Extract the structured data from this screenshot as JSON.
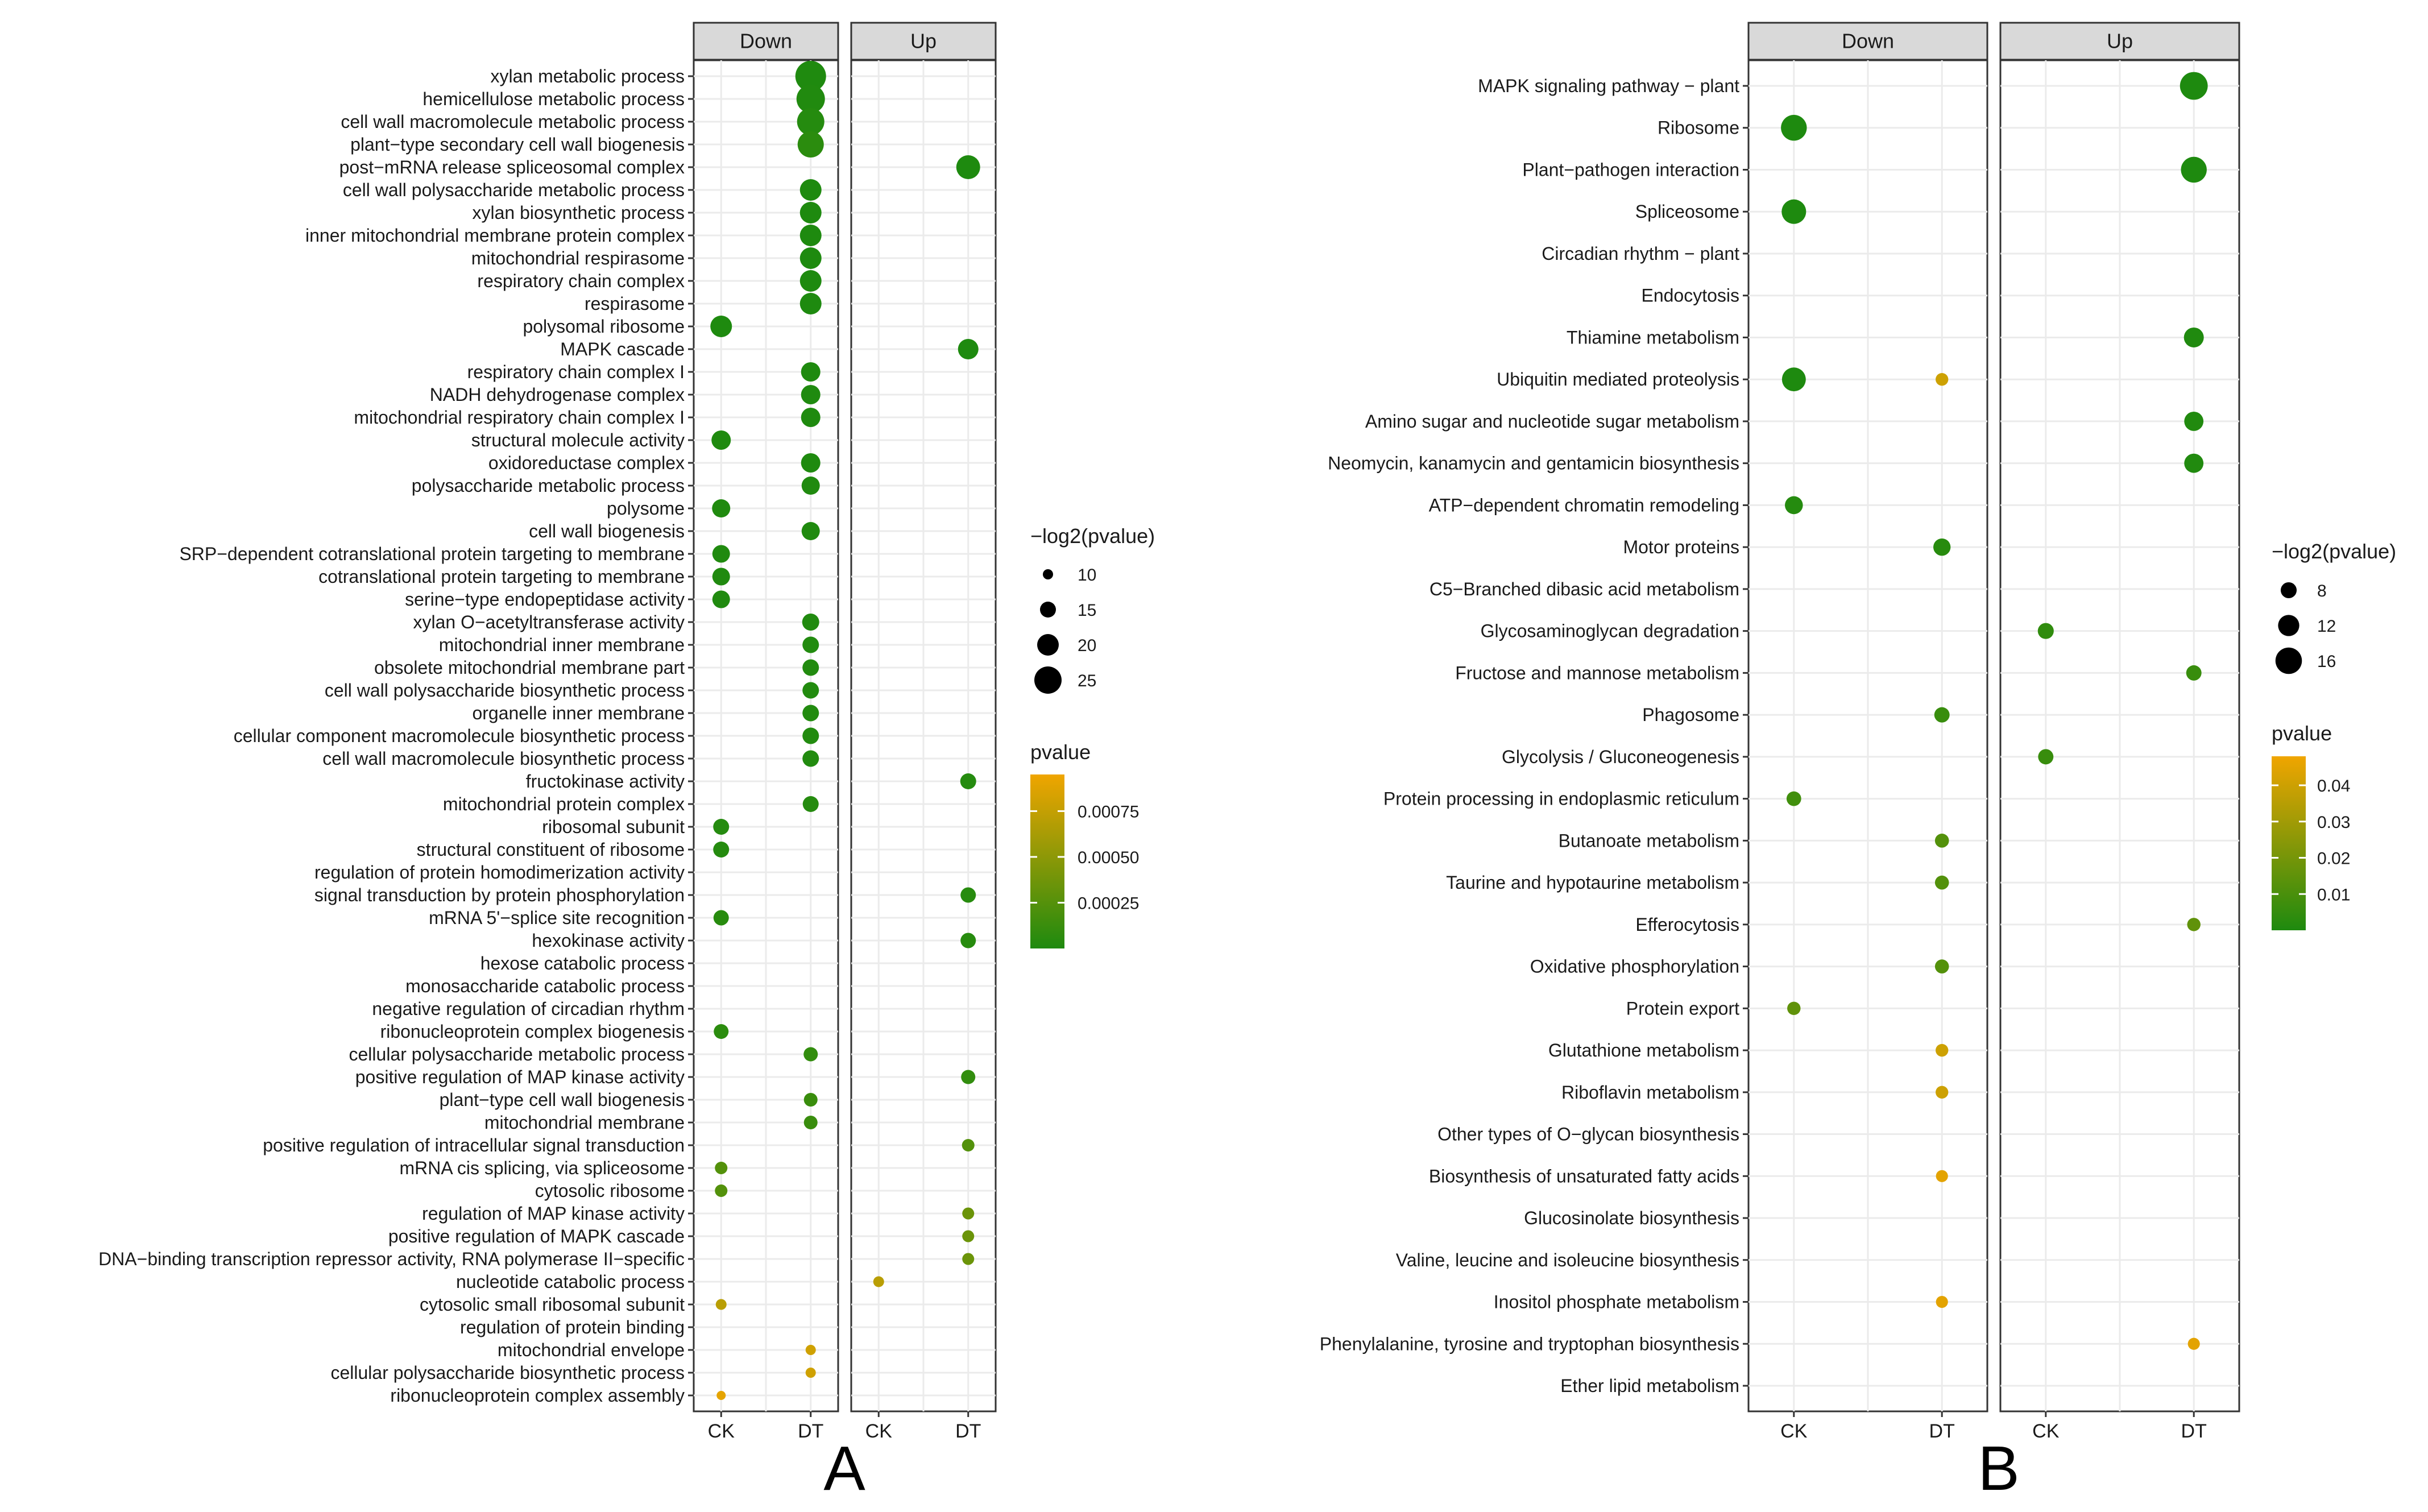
{
  "chart_data": [
    {
      "type": "scatter",
      "panel_label": "A",
      "facets": [
        "Down",
        "Up"
      ],
      "x_levels": [
        "CK",
        "DT"
      ],
      "categories": [
        "xylan metabolic process",
        "hemicellulose metabolic process",
        "cell wall macromolecule metabolic process",
        "plant−type secondary cell wall biogenesis",
        "post−mRNA release spliceosomal complex",
        "cell wall polysaccharide metabolic process",
        "xylan biosynthetic process",
        "inner mitochondrial membrane protein complex",
        "mitochondrial respirasome",
        "respiratory chain complex",
        "respirasome",
        "polysomal ribosome",
        "MAPK cascade",
        "respiratory chain complex I",
        "NADH dehydrogenase complex",
        "mitochondrial respiratory chain complex I",
        "structural molecule activity",
        "oxidoreductase complex",
        "polysaccharide metabolic process",
        "polysome",
        "cell wall biogenesis",
        "SRP−dependent cotranslational protein targeting to membrane",
        "cotranslational protein targeting to membrane",
        "serine−type endopeptidase activity",
        "xylan O−acetyltransferase activity",
        "mitochondrial inner membrane",
        "obsolete mitochondrial membrane part",
        "cell wall polysaccharide biosynthetic process",
        "organelle inner membrane",
        "cellular component macromolecule biosynthetic process",
        "cell wall macromolecule biosynthetic process",
        "fructokinase activity",
        "mitochondrial protein complex",
        "ribosomal subunit",
        "structural constituent of ribosome",
        "regulation of protein homodimerization activity",
        "signal transduction by protein phosphorylation",
        "mRNA 5'−splice site recognition",
        "hexokinase activity",
        "hexose catabolic process",
        "monosaccharide catabolic process",
        "negative regulation of circadian rhythm",
        "ribonucleoprotein complex biogenesis",
        "cellular polysaccharide metabolic process",
        "positive regulation of MAP kinase activity",
        "plant−type cell wall biogenesis",
        "mitochondrial membrane",
        "positive regulation of intracellular signal transduction",
        "mRNA cis splicing, via spliceosome",
        "cytosolic ribosome",
        "regulation of MAP kinase activity",
        "positive regulation of MAPK cascade",
        "DNA−binding transcription repressor activity, RNA polymerase II−specific",
        "nucleotide catabolic process",
        "cytosolic small ribosomal subunit",
        "regulation of protein binding",
        "mitochondrial envelope",
        "cellular polysaccharide biosynthetic process",
        "ribonucleoprotein complex assembly"
      ],
      "points": [
        {
          "facet": "Down",
          "x": "DT",
          "term": "xylan metabolic process",
          "neglog2p": 28,
          "pvalue": 4e-06
        },
        {
          "facet": "Down",
          "x": "DT",
          "term": "hemicellulose metabolic process",
          "neglog2p": 26,
          "pvalue": 1.5e-05
        },
        {
          "facet": "Down",
          "x": "DT",
          "term": "cell wall macromolecule metabolic process",
          "neglog2p": 25,
          "pvalue": 3e-05
        },
        {
          "facet": "Down",
          "x": "DT",
          "term": "plant−type secondary cell wall biogenesis",
          "neglog2p": 24,
          "pvalue": 6e-05
        },
        {
          "facet": "Up",
          "x": "DT",
          "term": "post−mRNA release spliceosomal complex",
          "neglog2p": 22,
          "pvalue": 2.4e-07
        },
        {
          "facet": "Down",
          "x": "DT",
          "term": "cell wall polysaccharide metabolic process",
          "neglog2p": 20,
          "pvalue": 1e-06
        },
        {
          "facet": "Down",
          "x": "DT",
          "term": "xylan biosynthetic process",
          "neglog2p": 20,
          "pvalue": 1e-06
        },
        {
          "facet": "Down",
          "x": "DT",
          "term": "inner mitochondrial membrane protein complex",
          "neglog2p": 20,
          "pvalue": 1e-06
        },
        {
          "facet": "Down",
          "x": "DT",
          "term": "mitochondrial respirasome",
          "neglog2p": 20,
          "pvalue": 1e-06
        },
        {
          "facet": "Down",
          "x": "DT",
          "term": "respiratory chain complex",
          "neglog2p": 20,
          "pvalue": 1e-06
        },
        {
          "facet": "Down",
          "x": "DT",
          "term": "respirasome",
          "neglog2p": 20,
          "pvalue": 1e-06
        },
        {
          "facet": "Down",
          "x": "CK",
          "term": "polysomal ribosome",
          "neglog2p": 20,
          "pvalue": 1e-06
        },
        {
          "facet": "Up",
          "x": "DT",
          "term": "MAPK cascade",
          "neglog2p": 19,
          "pvalue": 2e-06
        },
        {
          "facet": "Down",
          "x": "DT",
          "term": "respiratory chain complex I",
          "neglog2p": 18,
          "pvalue": 4e-06
        },
        {
          "facet": "Down",
          "x": "DT",
          "term": "NADH dehydrogenase complex",
          "neglog2p": 18,
          "pvalue": 4e-06
        },
        {
          "facet": "Down",
          "x": "DT",
          "term": "mitochondrial respiratory chain complex I",
          "neglog2p": 18,
          "pvalue": 4e-06
        },
        {
          "facet": "Down",
          "x": "CK",
          "term": "structural molecule activity",
          "neglog2p": 18,
          "pvalue": 4e-06
        },
        {
          "facet": "Down",
          "x": "DT",
          "term": "oxidoreductase complex",
          "neglog2p": 18,
          "pvalue": 4e-06
        },
        {
          "facet": "Down",
          "x": "DT",
          "term": "polysaccharide metabolic process",
          "neglog2p": 17,
          "pvalue": 8e-06
        },
        {
          "facet": "Down",
          "x": "CK",
          "term": "polysome",
          "neglog2p": 17,
          "pvalue": 8e-06
        },
        {
          "facet": "Down",
          "x": "DT",
          "term": "cell wall biogenesis",
          "neglog2p": 17,
          "pvalue": 8e-06
        },
        {
          "facet": "Down",
          "x": "CK",
          "term": "SRP−dependent cotranslational protein targeting to membrane",
          "neglog2p": 16.5,
          "pvalue": 1e-05
        },
        {
          "facet": "Down",
          "x": "CK",
          "term": "cotranslational protein targeting to membrane",
          "neglog2p": 16.5,
          "pvalue": 1e-05
        },
        {
          "facet": "Down",
          "x": "CK",
          "term": "serine−type endopeptidase activity",
          "neglog2p": 16.5,
          "pvalue": 1e-05
        },
        {
          "facet": "Down",
          "x": "DT",
          "term": "xylan O−acetyltransferase activity",
          "neglog2p": 16,
          "pvalue": 1.5e-05
        },
        {
          "facet": "Down",
          "x": "DT",
          "term": "mitochondrial inner membrane",
          "neglog2p": 15.5,
          "pvalue": 2e-05
        },
        {
          "facet": "Down",
          "x": "DT",
          "term": "obsolete mitochondrial membrane part",
          "neglog2p": 15.5,
          "pvalue": 2e-05
        },
        {
          "facet": "Down",
          "x": "DT",
          "term": "cell wall polysaccharide biosynthetic process",
          "neglog2p": 15.5,
          "pvalue": 2e-05
        },
        {
          "facet": "Down",
          "x": "DT",
          "term": "organelle inner membrane",
          "neglog2p": 15.5,
          "pvalue": 2e-05
        },
        {
          "facet": "Down",
          "x": "DT",
          "term": "cellular component macromolecule biosynthetic process",
          "neglog2p": 15.5,
          "pvalue": 2e-05
        },
        {
          "facet": "Down",
          "x": "DT",
          "term": "cell wall macromolecule biosynthetic process",
          "neglog2p": 15.5,
          "pvalue": 2e-05
        },
        {
          "facet": "Up",
          "x": "DT",
          "term": "fructokinase activity",
          "neglog2p": 15,
          "pvalue": 3e-05
        },
        {
          "facet": "Down",
          "x": "DT",
          "term": "mitochondrial protein complex",
          "neglog2p": 15,
          "pvalue": 3e-05
        },
        {
          "facet": "Down",
          "x": "CK",
          "term": "ribosomal subunit",
          "neglog2p": 15,
          "pvalue": 3e-05
        },
        {
          "facet": "Down",
          "x": "CK",
          "term": "structural constituent of ribosome",
          "neglog2p": 15,
          "pvalue": 3e-05
        },
        {
          "facet": "Up",
          "x": "DT",
          "term": "signal transduction by protein phosphorylation",
          "neglog2p": 14.5,
          "pvalue": 4e-05
        },
        {
          "facet": "Down",
          "x": "CK",
          "term": "mRNA 5'−splice site recognition",
          "neglog2p": 14.5,
          "pvalue": 4e-05
        },
        {
          "facet": "Up",
          "x": "DT",
          "term": "hexokinase activity",
          "neglog2p": 14.5,
          "pvalue": 4e-05
        },
        {
          "facet": "Down",
          "x": "CK",
          "term": "ribonucleoprotein complex biogenesis",
          "neglog2p": 14,
          "pvalue": 6e-05
        },
        {
          "facet": "Down",
          "x": "DT",
          "term": "cellular polysaccharide metabolic process",
          "neglog2p": 13.5,
          "pvalue": 9e-05
        },
        {
          "facet": "Up",
          "x": "DT",
          "term": "positive regulation of MAP kinase activity",
          "neglog2p": 13.5,
          "pvalue": 9e-05
        },
        {
          "facet": "Down",
          "x": "DT",
          "term": "plant−type cell wall biogenesis",
          "neglog2p": 13,
          "pvalue": 0.00012
        },
        {
          "facet": "Down",
          "x": "DT",
          "term": "mitochondrial membrane",
          "neglog2p": 13,
          "pvalue": 0.00012
        },
        {
          "facet": "Up",
          "x": "DT",
          "term": "positive regulation of intracellular signal transduction",
          "neglog2p": 12,
          "pvalue": 0.00024
        },
        {
          "facet": "Down",
          "x": "CK",
          "term": "mRNA cis splicing, via spliceosome",
          "neglog2p": 12,
          "pvalue": 0.00024
        },
        {
          "facet": "Down",
          "x": "CK",
          "term": "cytosolic ribosome",
          "neglog2p": 12,
          "pvalue": 0.00024
        },
        {
          "facet": "Up",
          "x": "DT",
          "term": "regulation of MAP kinase activity",
          "neglog2p": 11.5,
          "pvalue": 0.00035
        },
        {
          "facet": "Up",
          "x": "DT",
          "term": "positive regulation of MAPK cascade",
          "neglog2p": 11.5,
          "pvalue": 0.00035
        },
        {
          "facet": "Up",
          "x": "DT",
          "term": "DNA−binding transcription repressor activity, RNA polymerase II−specific",
          "neglog2p": 11.5,
          "pvalue": 0.00035
        },
        {
          "facet": "Up",
          "x": "CK",
          "term": "nucleotide catabolic process",
          "neglog2p": 10.5,
          "pvalue": 0.0007
        },
        {
          "facet": "Down",
          "x": "CK",
          "term": "cytosolic small ribosomal subunit",
          "neglog2p": 10.5,
          "pvalue": 0.0007
        },
        {
          "facet": "Down",
          "x": "DT",
          "term": "mitochondrial envelope",
          "neglog2p": 10,
          "pvalue": 0.0008
        },
        {
          "facet": "Down",
          "x": "DT",
          "term": "cellular polysaccharide biosynthetic process",
          "neglog2p": 10,
          "pvalue": 0.0008
        },
        {
          "facet": "Down",
          "x": "CK",
          "term": "ribonucleoprotein complex assembly",
          "neglog2p": 9,
          "pvalue": 0.0009
        }
      ],
      "size_legend": {
        "title": "−log2(pvalue)",
        "breaks": [
          10,
          15,
          20,
          25
        ],
        "range": [
          9,
          28
        ]
      },
      "color_legend": {
        "title": "pvalue",
        "breaks": [
          0.00025,
          0.0005,
          0.00075
        ],
        "labels": [
          "0.00025",
          "0.00050",
          "0.00075"
        ],
        "range": [
          0,
          0.00095
        ],
        "low_color": "#1e8a0f",
        "high_color": "#f0a500"
      }
    },
    {
      "type": "scatter",
      "panel_label": "B",
      "facets": [
        "Down",
        "Up"
      ],
      "x_levels": [
        "CK",
        "DT"
      ],
      "categories": [
        "MAPK signaling pathway − plant",
        "Ribosome",
        "Plant−pathogen interaction",
        "Spliceosome",
        "Circadian rhythm − plant",
        "Endocytosis",
        "Thiamine metabolism",
        "Ubiquitin mediated proteolysis",
        "Amino sugar and nucleotide sugar metabolism",
        "Neomycin, kanamycin and gentamicin biosynthesis",
        "ATP−dependent chromatin remodeling",
        "Motor proteins",
        "C5−Branched dibasic acid metabolism",
        "Glycosaminoglycan degradation",
        "Fructose and mannose metabolism",
        "Phagosome",
        "Glycolysis / Gluconeogenesis",
        "Protein processing in endoplasmic reticulum",
        "Butanoate metabolism",
        "Taurine and hypotaurine metabolism",
        "Efferocytosis",
        "Oxidative phosphorylation",
        "Protein export",
        "Glutathione metabolism",
        "Riboflavin metabolism",
        "Other types of O−glycan biosynthesis",
        "Biosynthesis of unsaturated fatty acids",
        "Glucosinolate biosynthesis",
        "Valine, leucine and isoleucine biosynthesis",
        "Inositol phosphate metabolism",
        "Phenylalanine, tyrosine and tryptophan biosynthesis",
        "Ether lipid metabolism"
      ],
      "points": [
        {
          "facet": "Up",
          "x": "DT",
          "term": "MAPK signaling pathway − plant",
          "neglog2p": 17,
          "pvalue": 1e-05
        },
        {
          "facet": "Down",
          "x": "CK",
          "term": "Ribosome",
          "neglog2p": 15.5,
          "pvalue": 2e-05
        },
        {
          "facet": "Up",
          "x": "DT",
          "term": "Plant−pathogen interaction",
          "neglog2p": 15.5,
          "pvalue": 2e-05
        },
        {
          "facet": "Down",
          "x": "CK",
          "term": "Spliceosome",
          "neglog2p": 14.5,
          "pvalue": 4e-05
        },
        {
          "facet": "Up",
          "x": "DT",
          "term": "Thiamine metabolism",
          "neglog2p": 11,
          "pvalue": 0.0005
        },
        {
          "facet": "Down",
          "x": "CK",
          "term": "Ubiquitin mediated proteolysis",
          "neglog2p": 14,
          "pvalue": 6e-05
        },
        {
          "facet": "Down",
          "x": "DT",
          "term": "Ubiquitin mediated proteolysis",
          "neglog2p": 5.5,
          "pvalue": 0.04
        },
        {
          "facet": "Up",
          "x": "DT",
          "term": "Amino sugar and nucleotide sugar metabolism",
          "neglog2p": 10.5,
          "pvalue": 0.0007
        },
        {
          "facet": "Up",
          "x": "DT",
          "term": "Neomycin, kanamycin and gentamicin biosynthesis",
          "neglog2p": 10.5,
          "pvalue": 0.0007
        },
        {
          "facet": "Down",
          "x": "CK",
          "term": "ATP−dependent chromatin remodeling",
          "neglog2p": 9.5,
          "pvalue": 0.0015
        },
        {
          "facet": "Down",
          "x": "DT",
          "term": "Motor proteins",
          "neglog2p": 9,
          "pvalue": 0.002
        },
        {
          "facet": "Up",
          "x": "CK",
          "term": "Glycosaminoglycan degradation",
          "neglog2p": 8,
          "pvalue": 0.004
        },
        {
          "facet": "Up",
          "x": "DT",
          "term": "Fructose and mannose metabolism",
          "neglog2p": 7.5,
          "pvalue": 0.006
        },
        {
          "facet": "Down",
          "x": "DT",
          "term": "Phagosome",
          "neglog2p": 7.5,
          "pvalue": 0.006
        },
        {
          "facet": "Up",
          "x": "CK",
          "term": "Glycolysis / Gluconeogenesis",
          "neglog2p": 7.5,
          "pvalue": 0.006
        },
        {
          "facet": "Down",
          "x": "CK",
          "term": "Protein processing in endoplasmic reticulum",
          "neglog2p": 7,
          "pvalue": 0.008
        },
        {
          "facet": "Down",
          "x": "DT",
          "term": "Butanoate metabolism",
          "neglog2p": 6.5,
          "pvalue": 0.012
        },
        {
          "facet": "Down",
          "x": "DT",
          "term": "Taurine and hypotaurine metabolism",
          "neglog2p": 6.5,
          "pvalue": 0.012
        },
        {
          "facet": "Up",
          "x": "DT",
          "term": "Efferocytosis",
          "neglog2p": 6,
          "pvalue": 0.015
        },
        {
          "facet": "Down",
          "x": "DT",
          "term": "Oxidative phosphorylation",
          "neglog2p": 6.5,
          "pvalue": 0.012
        },
        {
          "facet": "Down",
          "x": "CK",
          "term": "Protein export",
          "neglog2p": 6,
          "pvalue": 0.015
        },
        {
          "facet": "Down",
          "x": "DT",
          "term": "Glutathione metabolism",
          "neglog2p": 5.5,
          "pvalue": 0.04
        },
        {
          "facet": "Down",
          "x": "DT",
          "term": "Riboflavin metabolism",
          "neglog2p": 5.5,
          "pvalue": 0.04
        },
        {
          "facet": "Down",
          "x": "DT",
          "term": "Biosynthesis of unsaturated fatty acids",
          "neglog2p": 5,
          "pvalue": 0.045
        },
        {
          "facet": "Down",
          "x": "DT",
          "term": "Inositol phosphate metabolism",
          "neglog2p": 5,
          "pvalue": 0.045
        },
        {
          "facet": "Up",
          "x": "DT",
          "term": "Phenylalanine, tyrosine and tryptophan biosynthesis",
          "neglog2p": 5,
          "pvalue": 0.045
        }
      ],
      "size_legend": {
        "title": "−log2(pvalue)",
        "breaks": [
          8,
          12,
          16
        ],
        "range": [
          4.5,
          17.5
        ]
      },
      "color_legend": {
        "title": "pvalue",
        "breaks": [
          0.01,
          0.02,
          0.03,
          0.04
        ],
        "labels": [
          "0.01",
          "0.02",
          "0.03",
          "0.04"
        ],
        "range": [
          0,
          0.048
        ],
        "low_color": "#1e8a0f",
        "high_color": "#f0a500"
      }
    }
  ]
}
